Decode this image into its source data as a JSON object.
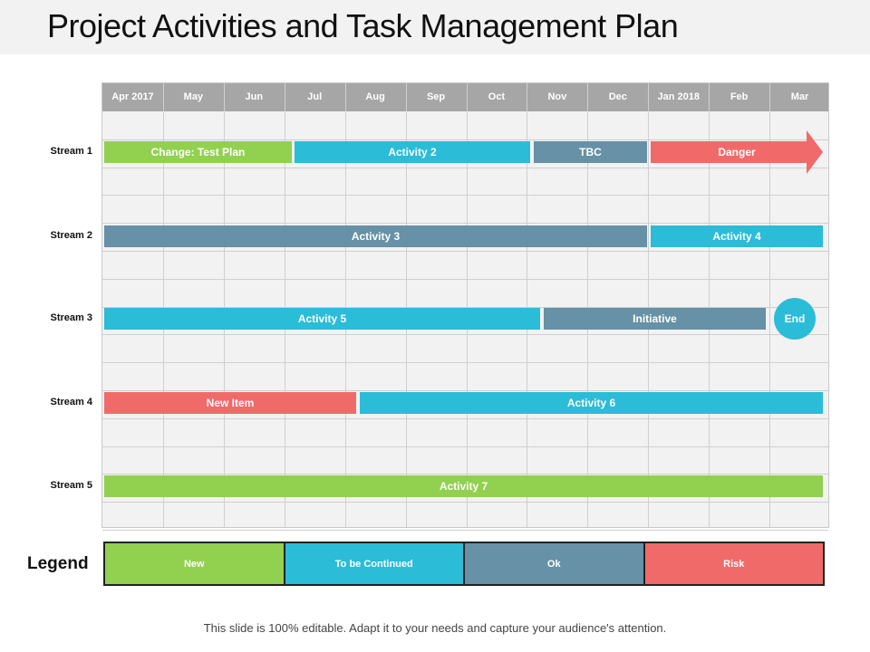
{
  "title": "Project Activities and Task Management Plan",
  "months": [
    "Apr 2017",
    "May",
    "Jun",
    "Jul",
    "Aug",
    "Sep",
    "Oct",
    "Nov",
    "Dec",
    "Jan 2018",
    "Feb",
    "Mar"
  ],
  "colors": {
    "new": "#92d050",
    "continued": "#2bbcd8",
    "ok": "#6691a6",
    "risk": "#f06a6a"
  },
  "streams": [
    {
      "label": "Stream 1",
      "bars": [
        {
          "label": "Change: Test Plan",
          "status": "new"
        },
        {
          "label": "Activity  2",
          "status": "continued"
        },
        {
          "label": "TBC",
          "status": "ok"
        },
        {
          "label": "Danger",
          "status": "risk",
          "shape": "arrow"
        }
      ]
    },
    {
      "label": "Stream 2",
      "bars": [
        {
          "label": "Activity  3",
          "status": "ok"
        },
        {
          "label": "Activity  4",
          "status": "continued"
        }
      ]
    },
    {
      "label": "Stream 3",
      "bars": [
        {
          "label": "Activity  5",
          "status": "continued"
        },
        {
          "label": "Initiative",
          "status": "ok"
        }
      ],
      "milestone": {
        "label": "End",
        "status": "continued"
      }
    },
    {
      "label": "Stream 4",
      "bars": [
        {
          "label": "New Item",
          "status": "risk"
        },
        {
          "label": "Activity  6",
          "status": "continued"
        }
      ]
    },
    {
      "label": "Stream 5",
      "bars": [
        {
          "label": "Activity  7",
          "status": "new"
        }
      ]
    }
  ],
  "legend": {
    "title": "Legend",
    "items": [
      {
        "label": "New",
        "status": "new"
      },
      {
        "label": "To be Continued",
        "status": "continued"
      },
      {
        "label": "Ok",
        "status": "ok"
      },
      {
        "label": "Risk",
        "status": "risk"
      }
    ]
  },
  "footer": "This slide is 100% editable. Adapt it to your needs and capture your audience's attention."
}
